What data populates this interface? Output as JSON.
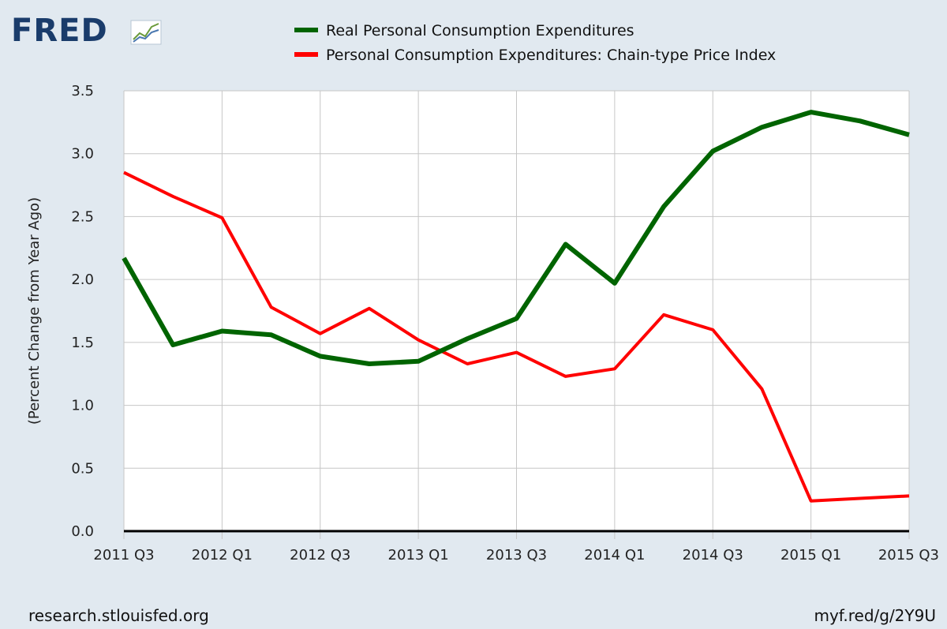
{
  "brand": {
    "logo_text": "FRED"
  },
  "footer": {
    "source": "research.stlouisfed.org",
    "short_link": "myf.red/g/2Y9U"
  },
  "colors": {
    "background": "#e1e9f0",
    "plot_bg": "#ffffff",
    "green": "#006400",
    "red": "#ff0000"
  },
  "chart_data": {
    "type": "line",
    "title": "",
    "xlabel": "",
    "ylabel": "(Percent Change from Year Ago)",
    "ylim": [
      0.0,
      3.5
    ],
    "yticks": [
      "0.0",
      "0.5",
      "1.0",
      "1.5",
      "2.0",
      "2.5",
      "3.0",
      "3.5"
    ],
    "x": [
      "2011 Q3",
      "2011 Q4",
      "2012 Q1",
      "2012 Q2",
      "2012 Q3",
      "2012 Q4",
      "2013 Q1",
      "2013 Q2",
      "2013 Q3",
      "2013 Q4",
      "2014 Q1",
      "2014 Q2",
      "2014 Q3",
      "2014 Q4",
      "2015 Q1",
      "2015 Q2",
      "2015 Q3"
    ],
    "xtick_labels": [
      "2011 Q3",
      "2012 Q1",
      "2012 Q3",
      "2013 Q1",
      "2013 Q3",
      "2014 Q1",
      "2014 Q3",
      "2015 Q1",
      "2015 Q3"
    ],
    "legend_position": "top",
    "grid": true,
    "series": [
      {
        "name": "Real Personal Consumption Expenditures",
        "color": "#006400",
        "values": [
          2.17,
          1.48,
          1.59,
          1.56,
          1.39,
          1.33,
          1.35,
          1.53,
          1.69,
          2.28,
          1.97,
          2.58,
          3.02,
          3.21,
          3.33,
          3.26,
          3.15
        ]
      },
      {
        "name": "Personal Consumption Expenditures: Chain-type Price Index",
        "color": "#ff0000",
        "values": [
          2.85,
          2.66,
          2.49,
          1.78,
          1.57,
          1.77,
          1.52,
          1.33,
          1.42,
          1.23,
          1.29,
          1.72,
          1.6,
          1.13,
          0.24,
          0.26,
          0.28
        ]
      }
    ]
  }
}
